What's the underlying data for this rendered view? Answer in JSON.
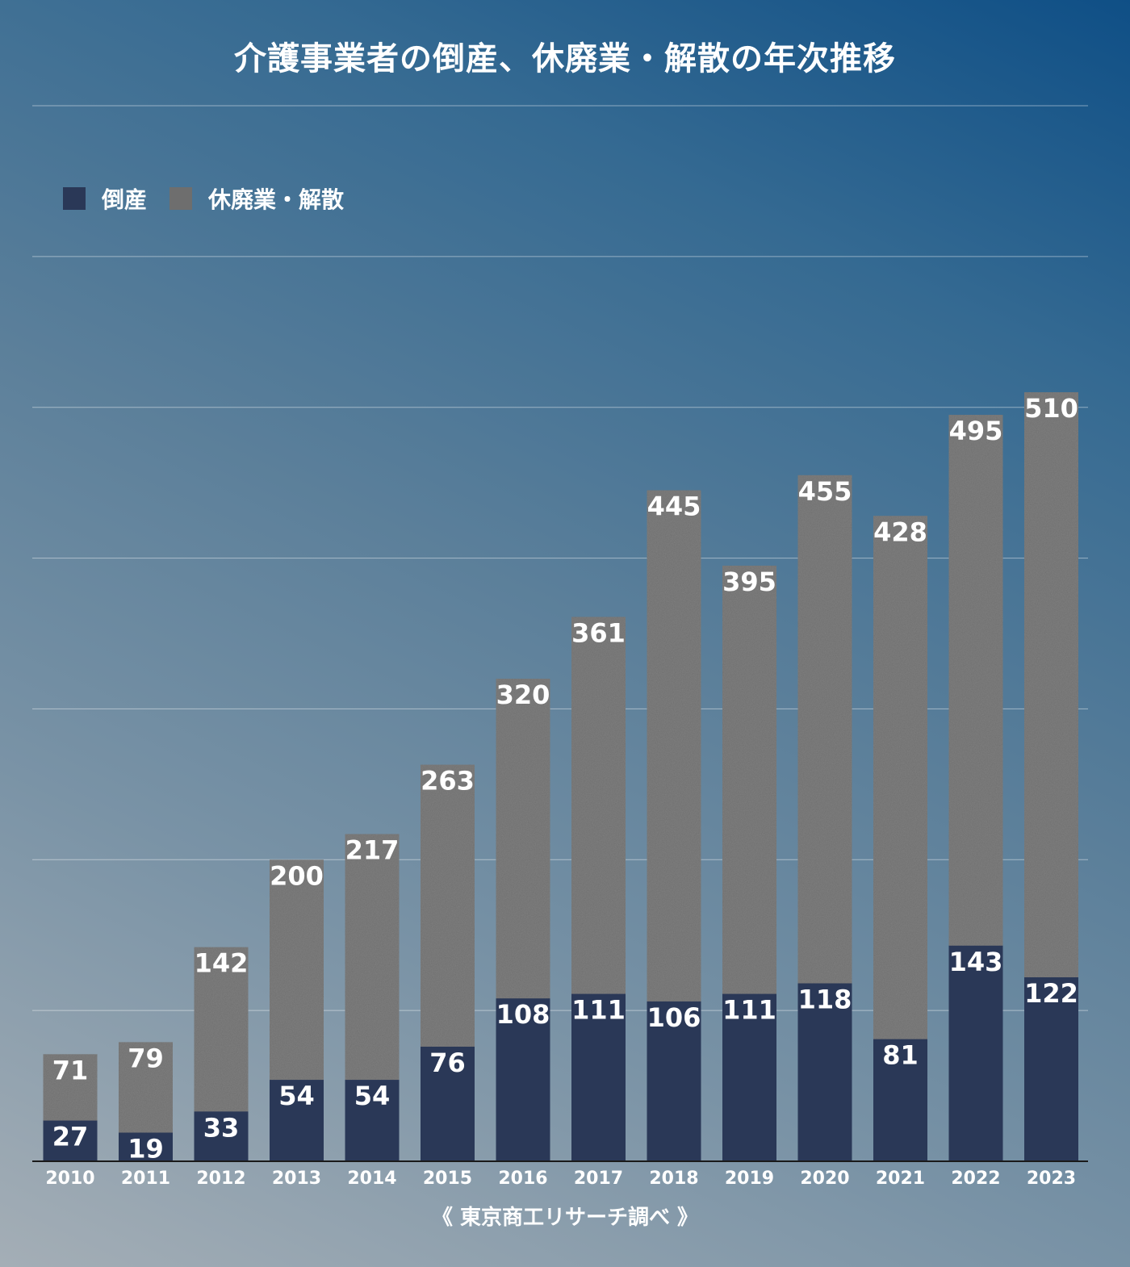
{
  "title": "介護事業者の倒産、休廃業・解散の年次推移",
  "source": "《 東京商工リサーチ調べ 》",
  "colors": {
    "bankruptcy": "#2a3857",
    "closure": "#6e6e6e",
    "gridline": "rgba(255,255,255,0.45)",
    "axis": "#1a1a1a",
    "text": "#ffffff"
  },
  "chart_data": {
    "type": "bar",
    "stacked": true,
    "title": "介護事業者の倒産、休廃業・解散の年次推移",
    "categories": [
      "2010",
      "2011",
      "2012",
      "2013",
      "2014",
      "2015",
      "2016",
      "2017",
      "2018",
      "2019",
      "2020",
      "2021",
      "2022",
      "2023"
    ],
    "series": [
      {
        "name": "倒産",
        "values": [
          27,
          19,
          33,
          54,
          54,
          76,
          108,
          111,
          106,
          111,
          118,
          81,
          143,
          122
        ]
      },
      {
        "name": "休廃業・解散",
        "values": [
          71,
          79,
          142,
          200,
          217,
          263,
          320,
          361,
          445,
          395,
          455,
          428,
          495,
          510
        ]
      }
    ],
    "ylim": [
      0,
      700
    ],
    "grid": true,
    "legend_position": "top-left"
  }
}
